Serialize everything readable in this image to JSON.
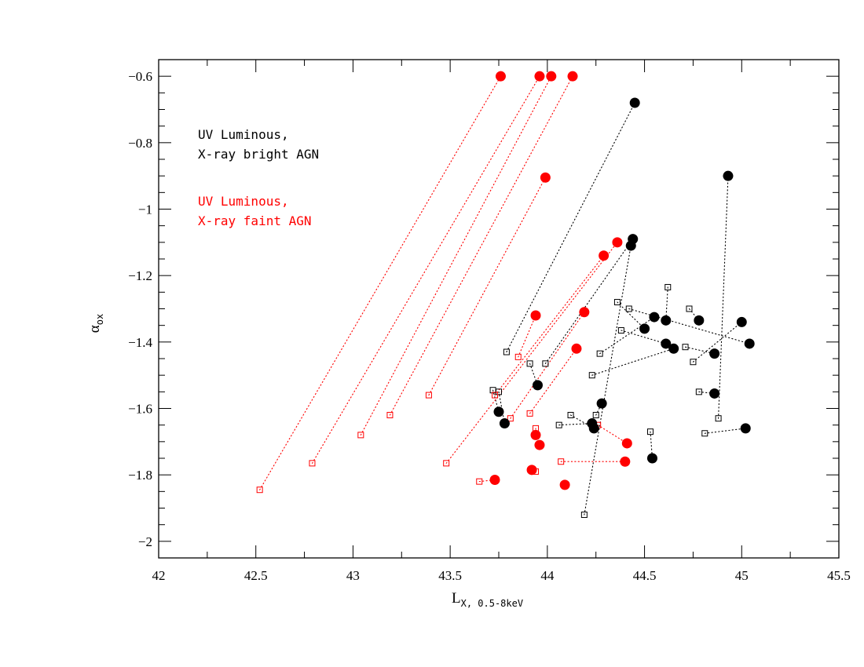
{
  "chart_data": {
    "type": "scatter",
    "xlabel": "L",
    "xlabel_sub": "X, 0.5-8keV",
    "ylabel": "α",
    "ylabel_sub": "ox",
    "xlim": [
      42,
      45.5
    ],
    "ylim": [
      -2.05,
      -0.55
    ],
    "x_ticks": [
      "42",
      "42.5",
      "43",
      "43.5",
      "44",
      "44.5",
      "45",
      "45.5"
    ],
    "y_ticks": [
      "-0.6",
      "-0.8",
      "-1",
      "-1.2",
      "-1.4",
      "-1.6",
      "-1.8",
      "-2"
    ],
    "legend": [
      {
        "lines": [
          "UV Luminous,",
          "X-ray bright AGN"
        ],
        "color": "#000000"
      },
      {
        "lines": [
          "UV Luminous,",
          "X-ray faint AGN"
        ],
        "color": "#ff0000"
      }
    ],
    "series": [
      {
        "name": "X-ray bright AGN",
        "color": "#000000",
        "pairs": [
          {
            "open": [
              43.79,
              -1.43
            ],
            "filled": [
              44.45,
              -0.68
            ]
          },
          {
            "open": [
              43.72,
              -1.545
            ],
            "filled": [
              43.75,
              -1.61
            ]
          },
          {
            "open": [
              43.75,
              -1.55
            ],
            "filled": [
              43.78,
              -1.645
            ]
          },
          {
            "open": [
              43.91,
              -1.465
            ],
            "filled": [
              43.95,
              -1.53
            ]
          },
          {
            "open": [
              43.99,
              -1.465
            ],
            "filled": [
              44.44,
              -1.09
            ]
          },
          {
            "open": [
              44.06,
              -1.65
            ],
            "filled": [
              44.23,
              -1.645
            ]
          },
          {
            "open": [
              44.12,
              -1.62
            ],
            "filled": [
              44.24,
              -1.66
            ]
          },
          {
            "open": [
              44.19,
              -1.92
            ],
            "filled": [
              44.43,
              -1.11
            ]
          },
          {
            "open": [
              44.25,
              -1.62
            ],
            "filled": [
              44.28,
              -1.585
            ]
          },
          {
            "open": [
              44.27,
              -1.435
            ],
            "filled": [
              44.55,
              -1.325
            ]
          },
          {
            "open": [
              44.23,
              -1.5
            ],
            "filled": [
              44.65,
              -1.42
            ]
          },
          {
            "open": [
              44.36,
              -1.28
            ],
            "filled": [
              44.5,
              -1.36
            ]
          },
          {
            "open": [
              44.38,
              -1.365
            ],
            "filled": [
              44.61,
              -1.405
            ]
          },
          {
            "open": [
              44.53,
              -1.67
            ],
            "filled": [
              44.54,
              -1.75
            ]
          },
          {
            "open": [
              44.62,
              -1.235
            ],
            "filled": [
              44.61,
              -1.335
            ]
          },
          {
            "open": [
              44.71,
              -1.415
            ],
            "filled": [
              44.86,
              -1.435
            ]
          },
          {
            "open": [
              44.73,
              -1.3
            ],
            "filled": [
              44.78,
              -1.335
            ]
          },
          {
            "open": [
              44.75,
              -1.46
            ],
            "filled": [
              45.0,
              -1.34
            ]
          },
          {
            "open": [
              44.78,
              -1.55
            ],
            "filled": [
              44.86,
              -1.555
            ]
          },
          {
            "open": [
              44.88,
              -1.63
            ],
            "filled": [
              44.93,
              -0.9
            ]
          },
          {
            "open": [
              44.81,
              -1.675
            ],
            "filled": [
              45.02,
              -1.66
            ]
          },
          {
            "open": [
              44.42,
              -1.3
            ],
            "filled": [
              45.04,
              -1.405
            ]
          }
        ]
      },
      {
        "name": "X-ray faint AGN",
        "color": "#ff0000",
        "pairs": [
          {
            "open": [
              42.52,
              -1.845
            ],
            "filled": [
              43.76,
              -0.6
            ]
          },
          {
            "open": [
              42.79,
              -1.765
            ],
            "filled": [
              43.96,
              -0.6
            ]
          },
          {
            "open": [
              43.04,
              -1.68
            ],
            "filled": [
              44.02,
              -0.6
            ]
          },
          {
            "open": [
              43.19,
              -1.62
            ],
            "filled": [
              44.13,
              -0.6
            ]
          },
          {
            "open": [
              43.39,
              -1.56
            ],
            "filled": [
              43.99,
              -0.905
            ]
          },
          {
            "open": [
              43.48,
              -1.765
            ],
            "filled": [
              44.36,
              -1.1
            ]
          },
          {
            "open": [
              43.73,
              -1.56
            ],
            "filled": [
              44.29,
              -1.14
            ]
          },
          {
            "open": [
              43.85,
              -1.445
            ],
            "filled": [
              43.94,
              -1.32
            ]
          },
          {
            "open": [
              43.81,
              -1.63
            ],
            "filled": [
              44.19,
              -1.31
            ]
          },
          {
            "open": [
              43.91,
              -1.615
            ],
            "filled": [
              44.15,
              -1.42
            ]
          },
          {
            "open": [
              43.94,
              -1.66
            ],
            "filled": [
              43.94,
              -1.68
            ]
          },
          {
            "open": [
              43.65,
              -1.82
            ],
            "filled": [
              43.73,
              -1.815
            ]
          },
          {
            "open": [
              43.94,
              -1.79
            ],
            "filled": [
              43.92,
              -1.785
            ]
          },
          {
            "open": [
              44.07,
              -1.76
            ],
            "filled": [
              44.4,
              -1.76
            ]
          },
          {
            "open": [
              44.26,
              -1.65
            ],
            "filled": [
              44.41,
              -1.705
            ]
          },
          {
            "open": [
              43.96,
              -1.71
            ],
            "filled": [
              43.96,
              -1.71
            ]
          },
          {
            "open": [
              44.09,
              -1.83
            ],
            "filled": [
              44.09,
              -1.83
            ]
          }
        ]
      }
    ],
    "grid": false
  }
}
